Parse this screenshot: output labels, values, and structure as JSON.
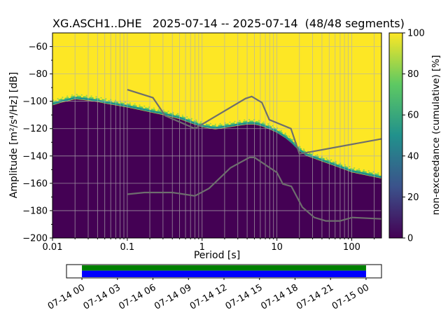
{
  "chart_data": {
    "type": "heatmap",
    "title": "XG.ASCH1..DHE   2025-07-14 -- 2025-07-14  (48/48 segments)",
    "xlabel": "Period [s]",
    "ylabel": "Amplitude [m²/s⁴/Hz] [dB]",
    "colorbar_label": "non-exceedance (cumulative) [%]",
    "xlim": [
      0.01,
      250
    ],
    "ylim": [
      -200,
      -50
    ],
    "x_ticks": [
      0.01,
      0.1,
      1,
      10,
      100
    ],
    "x_tick_labels": [
      "0.01",
      "0.1",
      "1",
      "10",
      "100"
    ],
    "y_ticks": [
      -60,
      -80,
      -100,
      -120,
      -140,
      -160,
      -180,
      -200
    ],
    "colorbar_ticks": [
      0,
      20,
      40,
      60,
      80,
      100
    ],
    "colorbar_range": [
      0,
      100
    ],
    "colormap": "viridis",
    "colormap_stops": [
      [
        0,
        "#440154"
      ],
      [
        0.25,
        "#3b528b"
      ],
      [
        0.5,
        "#21918c"
      ],
      [
        0.75,
        "#5ec962"
      ],
      [
        1,
        "#fde725"
      ]
    ],
    "colors": {
      "background": "#ffffff",
      "high": "#fde725",
      "low": "#440154",
      "teal": "#21918c",
      "green": "#5ec962",
      "noise_model": "#6e6e6e",
      "grid": "#b0b0b0",
      "frame": "#000000"
    },
    "psd_boundary": {
      "comment": "approximate 50% non-exceedance level of the PPSD vs period",
      "periods": [
        0.01,
        0.013,
        0.017,
        0.02,
        0.025,
        0.03,
        0.04,
        0.055,
        0.07,
        0.1,
        0.15,
        0.2,
        0.3,
        0.5,
        0.7,
        1.0,
        1.5,
        2.0,
        3.0,
        4.0,
        5.0,
        6.0,
        8.0,
        10,
        13,
        16,
        20,
        25,
        30,
        40,
        60,
        80,
        100,
        150,
        250
      ],
      "db": [
        -103,
        -101,
        -99.5,
        -98.5,
        -99,
        -99.5,
        -100.5,
        -102,
        -103,
        -104.5,
        -106.5,
        -108,
        -110,
        -113,
        -116,
        -119,
        -120.5,
        -119.5,
        -118,
        -117,
        -117,
        -118,
        -120.5,
        -123,
        -127,
        -131,
        -136.5,
        -140,
        -141.5,
        -144,
        -147.5,
        -150,
        -152,
        -154,
        -156.5
      ]
    },
    "noise_models": {
      "nhnm": {
        "periods": [
          0.1,
          0.22,
          0.32,
          0.8,
          3.8,
          4.6,
          6.3,
          7.9,
          15.4,
          20.0,
          250
        ],
        "db": [
          -91.5,
          -97.4,
          -110.5,
          -120.0,
          -98.0,
          -96.5,
          -101.0,
          -113.5,
          -120.0,
          -138.5,
          -127.5
        ]
      },
      "nlnm": {
        "periods": [
          0.1,
          0.17,
          0.4,
          0.8,
          1.24,
          2.4,
          4.3,
          5.0,
          6.0,
          10.0,
          12.0,
          15.6,
          21.9,
          31.6,
          45.0,
          70.0,
          101.0,
          250
        ],
        "db": [
          -168.0,
          -166.7,
          -166.7,
          -169.2,
          -163.7,
          -148.6,
          -141.1,
          -141.1,
          -144.0,
          -152.1,
          -160.5,
          -162.2,
          -177.5,
          -185.0,
          -187.5,
          -187.5,
          -185.0,
          -186.0
        ]
      }
    },
    "timeline": {
      "tick_labels": [
        "07-14 00",
        "07-14 03",
        "07-14 06",
        "07-14 09",
        "07-14 12",
        "07-14 15",
        "07-14 18",
        "07-14 21",
        "07-15 00"
      ],
      "psd_color": "#008000",
      "data_color": "#0000ff",
      "green_frac": 0.45,
      "data_start_frac": 0.049,
      "data_end_frac": 0.951
    }
  }
}
